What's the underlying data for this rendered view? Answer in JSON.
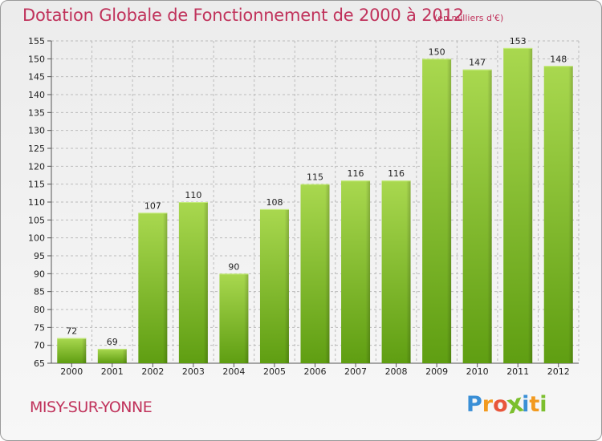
{
  "header": {
    "title": "Dotation Globale de Fonctionnement de 2000 à 2012",
    "subtitle": "(en milliers d'€)"
  },
  "footer": {
    "commune": "MISY-SUR-YONNE",
    "logo_text": "Proxiti",
    "logo_letters": [
      "P",
      "r",
      "o",
      "x",
      "i",
      "t",
      "i"
    ],
    "logo_colors": [
      "#3a8fd6",
      "#f29a1f",
      "#e8563b",
      "#7cbf2e",
      "#3a8fd6",
      "#f29a1f",
      "#7cbf2e"
    ]
  },
  "colors": {
    "accent": "#c0325b",
    "bar_top": "#a9d84f",
    "bar_bottom": "#5f9e12",
    "grid": "#bbbbbb"
  },
  "chart_data": {
    "type": "bar",
    "title": "Dotation Globale de Fonctionnement de 2000 à 2012",
    "subtitle": "(en milliers d'€)",
    "categories": [
      "2000",
      "2001",
      "2002",
      "2003",
      "2004",
      "2005",
      "2006",
      "2007",
      "2008",
      "2009",
      "2010",
      "2011",
      "2012"
    ],
    "values": [
      72,
      69,
      107,
      110,
      90,
      108,
      115,
      116,
      116,
      150,
      147,
      153,
      148
    ],
    "ylim": [
      65,
      155
    ],
    "yticks": [
      65,
      70,
      75,
      80,
      85,
      90,
      95,
      100,
      105,
      110,
      115,
      120,
      125,
      130,
      135,
      140,
      145,
      150,
      155
    ],
    "xlabel": "",
    "ylabel": "",
    "grid": true,
    "legend": "none"
  }
}
